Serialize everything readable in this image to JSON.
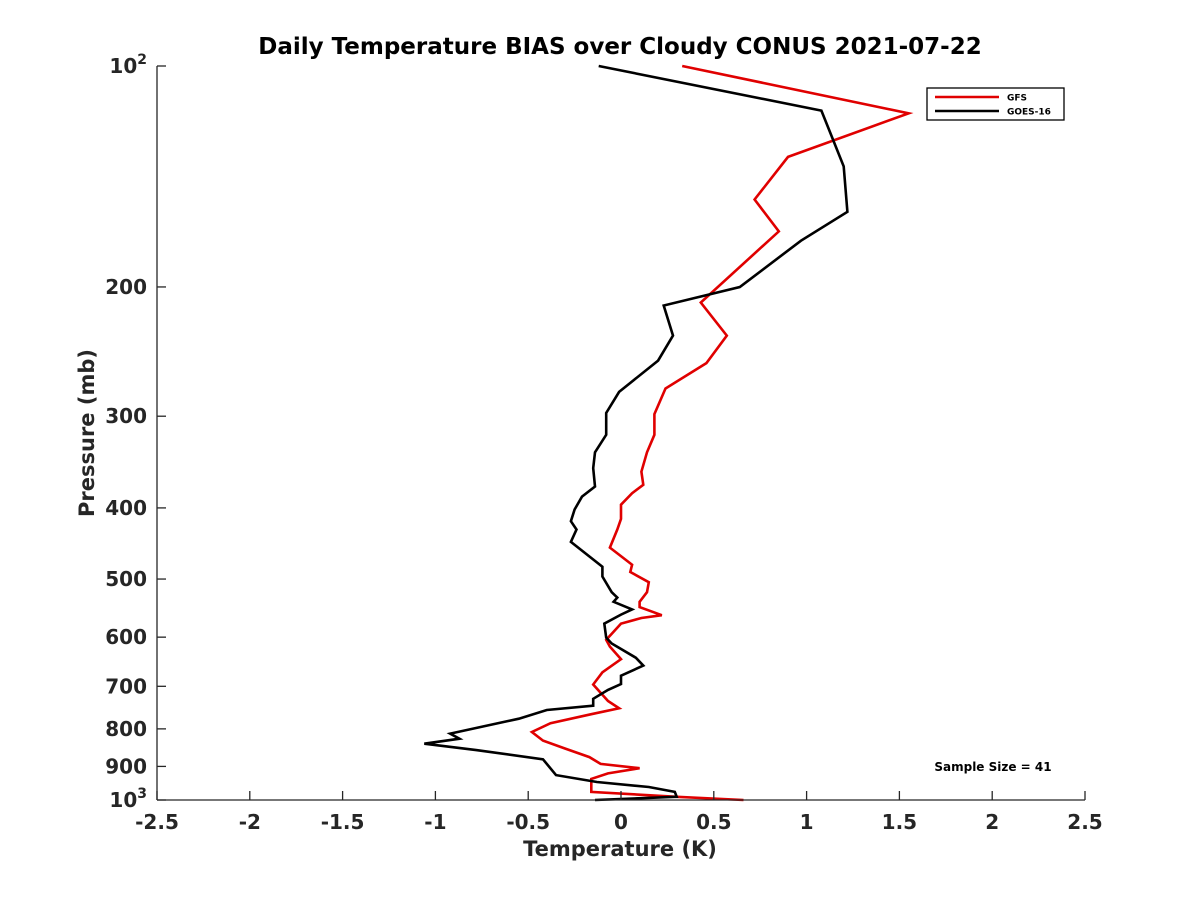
{
  "chart_data": {
    "type": "line",
    "title": "Daily Temperature BIAS over Cloudy CONUS 2021-07-22",
    "xlabel": "Temperature (K)",
    "ylabel": "Pressure (mb)",
    "xlim": [
      -2.5,
      2.5
    ],
    "ylim": [
      100,
      1000
    ],
    "y_scale": "log",
    "y_reversed": true,
    "grid": false,
    "legend_position": "top-right",
    "x_ticks": [
      "-2.5",
      "-2",
      "-1.5",
      "-1",
      "-0.5",
      "0",
      "0.5",
      "1",
      "1.5",
      "2",
      "2.5"
    ],
    "y_ticks": [
      {
        "value": 100,
        "label": "10",
        "sup": "2"
      },
      {
        "value": 200,
        "label": "200",
        "sup": ""
      },
      {
        "value": 300,
        "label": "300",
        "sup": ""
      },
      {
        "value": 400,
        "label": "400",
        "sup": ""
      },
      {
        "value": 500,
        "label": "500",
        "sup": ""
      },
      {
        "value": 600,
        "label": "600",
        "sup": ""
      },
      {
        "value": 700,
        "label": "700",
        "sup": ""
      },
      {
        "value": 800,
        "label": "800",
        "sup": ""
      },
      {
        "value": 900,
        "label": "900",
        "sup": ""
      },
      {
        "value": 1000,
        "label": "10",
        "sup": "3"
      }
    ],
    "series": [
      {
        "name": "GFS",
        "color": "#e00000",
        "points": [
          [
            0.33,
            100
          ],
          [
            1.55,
            116
          ],
          [
            0.9,
            133
          ],
          [
            0.72,
            152
          ],
          [
            0.85,
            168
          ],
          [
            0.43,
            210
          ],
          [
            0.57,
            233
          ],
          [
            0.46,
            254
          ],
          [
            0.24,
            275
          ],
          [
            0.18,
            298
          ],
          [
            0.18,
            318
          ],
          [
            0.14,
            336
          ],
          [
            0.11,
            357
          ],
          [
            0.12,
            372
          ],
          [
            0.06,
            382
          ],
          [
            0.0,
            396
          ],
          [
            0.0,
            414
          ],
          [
            -0.02,
            428
          ],
          [
            -0.06,
            453
          ],
          [
            0.06,
            478
          ],
          [
            0.05,
            489
          ],
          [
            0.15,
            505
          ],
          [
            0.14,
            521
          ],
          [
            0.1,
            537
          ],
          [
            0.1,
            546
          ],
          [
            0.22,
            560
          ],
          [
            0.11,
            565
          ],
          [
            0.0,
            575
          ],
          [
            -0.04,
            590
          ],
          [
            -0.08,
            605
          ],
          [
            -0.06,
            618
          ],
          [
            0.0,
            643
          ],
          [
            -0.1,
            670
          ],
          [
            -0.15,
            696
          ],
          [
            -0.07,
            733
          ],
          [
            -0.01,
            750
          ],
          [
            -0.16,
            764
          ],
          [
            -0.38,
            786
          ],
          [
            -0.48,
            808
          ],
          [
            -0.42,
            830
          ],
          [
            -0.3,
            851
          ],
          [
            -0.17,
            874
          ],
          [
            -0.11,
            893
          ],
          [
            0.1,
            905
          ],
          [
            -0.07,
            920
          ],
          [
            -0.16,
            936
          ],
          [
            -0.16,
            958
          ],
          [
            -0.16,
            975
          ],
          [
            0.3,
            990
          ],
          [
            0.66,
            1000
          ]
        ]
      },
      {
        "name": "GOES-16",
        "color": "#000000",
        "points": [
          [
            -0.12,
            100
          ],
          [
            1.08,
            115
          ],
          [
            1.2,
            137
          ],
          [
            1.22,
            158
          ],
          [
            0.97,
            173
          ],
          [
            0.64,
            200
          ],
          [
            0.23,
            212
          ],
          [
            0.28,
            233
          ],
          [
            0.2,
            252
          ],
          [
            -0.01,
            278
          ],
          [
            -0.08,
            297
          ],
          [
            -0.08,
            318
          ],
          [
            -0.14,
            336
          ],
          [
            -0.15,
            353
          ],
          [
            -0.14,
            374
          ],
          [
            -0.21,
            386
          ],
          [
            -0.25,
            402
          ],
          [
            -0.27,
            417
          ],
          [
            -0.24,
            428
          ],
          [
            -0.27,
            445
          ],
          [
            -0.1,
            481
          ],
          [
            -0.1,
            496
          ],
          [
            -0.05,
            521
          ],
          [
            -0.02,
            530
          ],
          [
            -0.04,
            537
          ],
          [
            0.06,
            550
          ],
          [
            0.0,
            559
          ],
          [
            -0.09,
            575
          ],
          [
            -0.08,
            601
          ],
          [
            -0.05,
            612
          ],
          [
            0.08,
            640
          ],
          [
            0.12,
            656
          ],
          [
            0.0,
            677
          ],
          [
            0.0,
            695
          ],
          [
            -0.07,
            708
          ],
          [
            -0.15,
            728
          ],
          [
            -0.15,
            744
          ],
          [
            -0.4,
            754
          ],
          [
            -0.55,
            775
          ],
          [
            -0.92,
            812
          ],
          [
            -0.87,
            825
          ],
          [
            -1.06,
            838
          ],
          [
            -0.78,
            855
          ],
          [
            -0.42,
            880
          ],
          [
            -0.35,
            925
          ],
          [
            -0.13,
            945
          ],
          [
            0.15,
            960
          ],
          [
            0.29,
            975
          ],
          [
            0.3,
            990
          ],
          [
            -0.14,
            1000
          ]
        ]
      }
    ],
    "annotation": "Sample Size = 41"
  }
}
